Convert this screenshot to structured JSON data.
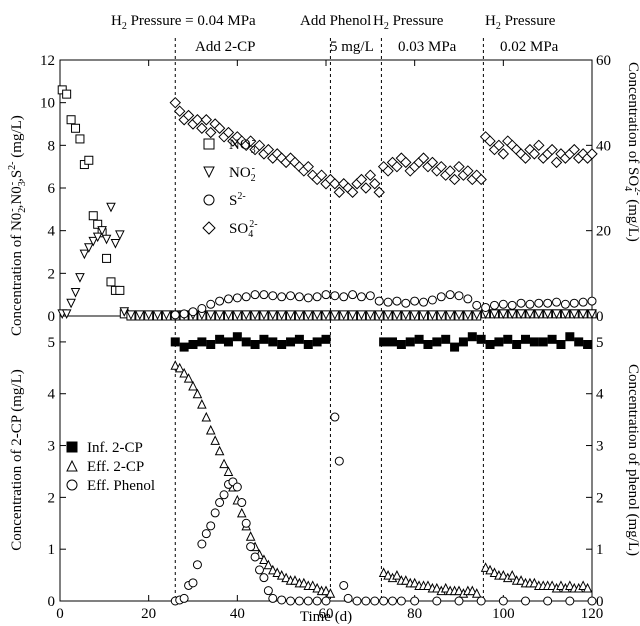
{
  "chart_data": [
    {
      "type": "scatter",
      "panel": "top",
      "ylabel_left": "Concentration of NO2-, NO3-, S2- (mg/L)",
      "ylabel_left_html": [
        "Concentration of N0",
        "2",
        "-",
        ",N0",
        "3",
        "-",
        ",S",
        "2-",
        " (mg/L)"
      ],
      "ylabel_right_parts": [
        "Concentration of SO",
        "4",
        "2-",
        " (mg/L)"
      ],
      "ylim_left": [
        0,
        12
      ],
      "yticks_left": [
        0,
        2,
        4,
        6,
        8,
        10,
        12
      ],
      "ylim_right": [
        0,
        60
      ],
      "yticks_right": [
        0,
        20,
        40,
        60
      ],
      "xlim": [
        0,
        120
      ],
      "legend": [
        {
          "label": "NO3-",
          "base": "NO",
          "sub": "3",
          "sup": "-",
          "marker": "square"
        },
        {
          "label": "NO2-",
          "base": "NO",
          "sub": "2",
          "sup": "-",
          "marker": "triangle-down"
        },
        {
          "label": "S2-",
          "base": "S",
          "sub": "",
          "sup": "2-",
          "marker": "circle"
        },
        {
          "label": "SO42-",
          "base": "SO",
          "sub": "4",
          "sup": "2-",
          "marker": "diamond"
        }
      ],
      "series": [
        {
          "name": "NO3-",
          "marker": "square",
          "axis": "left",
          "x": [
            0.5,
            1.5,
            2.5,
            3.5,
            4.5,
            5.5,
            6.5,
            7.5,
            8.5,
            9.5,
            10.5,
            11.5,
            12.5,
            13.5,
            14.5,
            16,
            18,
            20,
            22,
            24,
            26,
            28,
            30,
            32,
            34,
            36,
            38,
            40,
            42,
            44,
            46,
            48,
            50,
            52,
            54,
            56,
            58,
            60,
            62,
            64,
            66,
            68,
            70,
            72,
            74,
            76,
            78,
            80,
            82,
            84,
            86,
            88,
            90,
            92,
            94,
            96,
            98,
            100,
            102,
            104,
            106,
            108,
            110,
            112,
            114,
            116,
            118,
            120
          ],
          "y": [
            10.6,
            10.4,
            9.2,
            8.8,
            8.3,
            7.1,
            7.3,
            4.7,
            4.3,
            3.9,
            2.7,
            1.6,
            1.2,
            1.2,
            0.1,
            0,
            0,
            0,
            0,
            0,
            0,
            0,
            0,
            0,
            0,
            0,
            0,
            0,
            0,
            0,
            0,
            0,
            0,
            0,
            0,
            0,
            0,
            0,
            0,
            0,
            0,
            0,
            0,
            0,
            0,
            0,
            0,
            0,
            0,
            0,
            0,
            0,
            0,
            0,
            0,
            0.1,
            0.1,
            0.1,
            0.1,
            0.1,
            0.1,
            0.1,
            0.1,
            0.1,
            0.1,
            0.1,
            0.1,
            0.1
          ]
        },
        {
          "name": "NO2-",
          "marker": "triangle-down",
          "axis": "left",
          "x": [
            0.5,
            1.5,
            2.5,
            3.5,
            4.5,
            5.5,
            6.5,
            7.5,
            8.5,
            9.5,
            10.5,
            11.5,
            12.5,
            13.5,
            14.5,
            16,
            18,
            20,
            22,
            24,
            26,
            28,
            30,
            32,
            34,
            36,
            38,
            40,
            42,
            44,
            46,
            48,
            50,
            52,
            54,
            56,
            58,
            60,
            62,
            64,
            66,
            68,
            70,
            72,
            74,
            76,
            78,
            80,
            82,
            84,
            86,
            88,
            90,
            92,
            94,
            96,
            98,
            100,
            102,
            104,
            106,
            108,
            110,
            112,
            114,
            116,
            118,
            120
          ],
          "y": [
            0.1,
            0.1,
            0.6,
            1.1,
            1.8,
            2.9,
            3.2,
            3.5,
            3.7,
            4.0,
            3.6,
            5.1,
            3.4,
            3.8,
            0.2,
            0.05,
            0.05,
            0.05,
            0.05,
            0.05,
            0.05,
            0.05,
            0.05,
            0.05,
            0.05,
            0.05,
            0.05,
            0.05,
            0.05,
            0.05,
            0.05,
            0.05,
            0.05,
            0.05,
            0.05,
            0.05,
            0.05,
            0.05,
            0.05,
            0.05,
            0.05,
            0.05,
            0.05,
            0.05,
            0.05,
            0.05,
            0.05,
            0.05,
            0.05,
            0.05,
            0.05,
            0.05,
            0.05,
            0.05,
            0.05,
            0.1,
            0.1,
            0.1,
            0.1,
            0.1,
            0.1,
            0.1,
            0.1,
            0.1,
            0.1,
            0.1,
            0.1,
            0.1
          ]
        },
        {
          "name": "S2-",
          "marker": "circle",
          "axis": "left",
          "x": [
            26,
            28,
            30,
            32,
            34,
            36,
            38,
            40,
            42,
            44,
            46,
            48,
            50,
            52,
            54,
            56,
            58,
            60,
            62,
            64,
            66,
            68,
            70,
            72,
            74,
            76,
            78,
            80,
            82,
            84,
            86,
            88,
            90,
            92,
            94,
            96,
            98,
            100,
            102,
            104,
            106,
            108,
            110,
            112,
            114,
            116,
            118,
            120
          ],
          "y": [
            0.05,
            0.1,
            0.2,
            0.35,
            0.55,
            0.7,
            0.8,
            0.85,
            0.9,
            1.0,
            1.0,
            0.95,
            0.9,
            0.95,
            0.9,
            0.85,
            0.9,
            1.0,
            0.95,
            0.9,
            1.0,
            0.9,
            0.95,
            0.7,
            0.65,
            0.7,
            0.6,
            0.7,
            0.65,
            0.75,
            0.9,
            1.0,
            0.95,
            0.8,
            0.5,
            0.4,
            0.5,
            0.55,
            0.5,
            0.6,
            0.55,
            0.6,
            0.6,
            0.65,
            0.55,
            0.6,
            0.65,
            0.7
          ]
        },
        {
          "name": "SO42-",
          "marker": "diamond",
          "axis": "right",
          "x": [
            26,
            27,
            28,
            29,
            30,
            31,
            32,
            33,
            34,
            35,
            36,
            37,
            38,
            39,
            40,
            41,
            42,
            43,
            44,
            45,
            46,
            47,
            48,
            49,
            50,
            51,
            52,
            53,
            54,
            55,
            56,
            57,
            58,
            59,
            60,
            61,
            62,
            63,
            64,
            65,
            66,
            67,
            68,
            69,
            70,
            71,
            72,
            73,
            74,
            75,
            76,
            77,
            78,
            79,
            80,
            81,
            82,
            83,
            84,
            85,
            86,
            87,
            88,
            89,
            90,
            91,
            92,
            93,
            94,
            95,
            96,
            97,
            98,
            99,
            100,
            101,
            102,
            103,
            104,
            105,
            106,
            107,
            108,
            109,
            110,
            111,
            112,
            113,
            114,
            115,
            116,
            117,
            118,
            119,
            120
          ],
          "y": [
            50,
            48,
            46,
            47,
            45,
            46,
            44,
            46,
            43,
            45,
            44,
            42,
            43,
            41,
            42,
            41,
            40,
            41,
            39,
            40,
            38,
            39,
            37,
            38,
            37,
            36,
            37,
            36,
            35,
            34,
            35,
            33,
            32,
            33,
            31,
            32,
            31,
            29,
            31,
            30,
            29,
            31,
            32,
            30,
            33,
            31,
            29,
            35,
            34,
            36,
            35,
            37,
            36,
            34,
            35,
            36,
            37,
            35,
            36,
            34,
            35,
            33,
            34,
            32,
            35,
            33,
            34,
            32,
            33,
            32,
            42,
            41,
            39,
            40,
            38,
            41,
            40,
            39,
            38,
            37,
            39,
            38,
            40,
            37,
            38,
            39,
            36,
            38,
            37,
            38,
            39,
            37,
            38,
            37,
            38
          ]
        }
      ]
    },
    {
      "type": "scatter",
      "panel": "bottom",
      "ylabel_left": "Concentration of 2-CP (mg/L)",
      "ylabel_right": "Concentration of phenol (mg/L)",
      "xlabel": "Time (d)",
      "ylim_left": [
        0,
        5.5
      ],
      "yticks_left": [
        0,
        1,
        2,
        3,
        4,
        5
      ],
      "ylim_right": [
        0,
        5.5
      ],
      "yticks_right": [
        0,
        1,
        2,
        3,
        4,
        5
      ],
      "xlim": [
        0,
        120
      ],
      "xticks": [
        0,
        20,
        40,
        60,
        80,
        100,
        120
      ],
      "legend": [
        {
          "label": "Inf. 2-CP",
          "marker": "filled-square"
        },
        {
          "label": "Eff. 2-CP",
          "marker": "triangle-up"
        },
        {
          "label": "Eff. Phenol",
          "marker": "circle"
        }
      ],
      "series": [
        {
          "name": "Inf. 2-CP",
          "marker": "filled-square",
          "x": [
            26,
            28,
            30,
            32,
            34,
            36,
            38,
            40,
            42,
            44,
            46,
            48,
            50,
            52,
            54,
            56,
            58,
            60,
            73,
            75,
            77,
            79,
            81,
            83,
            85,
            87,
            89,
            91,
            93,
            95,
            97,
            99,
            101,
            103,
            105,
            107,
            109,
            111,
            113,
            115,
            117,
            119
          ],
          "y": [
            5.0,
            4.9,
            4.95,
            5.0,
            4.95,
            5.05,
            5.0,
            5.1,
            5.0,
            4.95,
            5.05,
            5.0,
            4.95,
            5.0,
            5.05,
            4.95,
            5.0,
            5.05,
            5.0,
            5.0,
            4.95,
            5.0,
            5.05,
            4.95,
            5.0,
            5.05,
            4.9,
            5.0,
            5.1,
            5.05,
            4.95,
            5.0,
            5.05,
            4.95,
            5.05,
            5.0,
            5.0,
            5.05,
            4.95,
            5.1,
            5.0,
            4.95
          ]
        },
        {
          "name": "Eff. 2-CP",
          "marker": "triangle-up",
          "x": [
            26,
            27,
            28,
            29,
            30,
            31,
            32,
            33,
            34,
            35,
            36,
            37,
            38,
            39,
            40,
            41,
            42,
            43,
            44,
            45,
            46,
            47,
            48,
            49,
            50,
            51,
            52,
            53,
            54,
            55,
            56,
            57,
            58,
            59,
            60,
            61,
            73,
            74,
            75,
            76,
            77,
            78,
            79,
            80,
            81,
            82,
            83,
            84,
            85,
            86,
            87,
            88,
            89,
            90,
            91,
            92,
            93,
            94,
            96,
            97,
            98,
            99,
            100,
            101,
            102,
            103,
            104,
            105,
            106,
            107,
            108,
            109,
            110,
            111,
            112,
            113,
            114,
            115,
            116,
            117,
            118,
            119
          ],
          "y": [
            4.55,
            4.5,
            4.4,
            4.3,
            4.15,
            4.0,
            3.8,
            3.55,
            3.3,
            3.1,
            2.9,
            2.65,
            2.5,
            2.2,
            1.95,
            1.7,
            1.45,
            1.25,
            1.05,
            0.9,
            0.8,
            0.7,
            0.6,
            0.55,
            0.5,
            0.45,
            0.4,
            0.4,
            0.35,
            0.35,
            0.3,
            0.3,
            0.25,
            0.2,
            0.2,
            0.15,
            0.55,
            0.5,
            0.45,
            0.5,
            0.4,
            0.4,
            0.35,
            0.35,
            0.3,
            0.3,
            0.3,
            0.25,
            0.25,
            0.2,
            0.25,
            0.2,
            0.2,
            0.2,
            0.15,
            0.2,
            0.2,
            0.15,
            0.65,
            0.6,
            0.55,
            0.5,
            0.5,
            0.45,
            0.5,
            0.4,
            0.4,
            0.35,
            0.35,
            0.35,
            0.3,
            0.3,
            0.3,
            0.3,
            0.25,
            0.3,
            0.25,
            0.3,
            0.25,
            0.25,
            0.3,
            0.25
          ]
        },
        {
          "name": "Eff. Phenol",
          "marker": "circle",
          "x": [
            26,
            27,
            28,
            29,
            30,
            31,
            32,
            33,
            34,
            35,
            36,
            37,
            38,
            39,
            40,
            41,
            42,
            43,
            44,
            45,
            46,
            47,
            48,
            50,
            52,
            54,
            56,
            58,
            60,
            62,
            63,
            64,
            65,
            67,
            69,
            71,
            73,
            75,
            77,
            80,
            85,
            90,
            95,
            100,
            105,
            110,
            115,
            120
          ],
          "y": [
            0,
            0.02,
            0.05,
            0.3,
            0.35,
            0.7,
            1.1,
            1.3,
            1.45,
            1.7,
            1.9,
            2.05,
            2.25,
            2.3,
            2.2,
            1.9,
            1.5,
            1.05,
            0.85,
            0.6,
            0.45,
            0.2,
            0.05,
            0.02,
            0,
            0,
            0,
            0,
            0,
            3.55,
            2.7,
            0.3,
            0.05,
            0,
            0,
            0,
            0,
            0,
            0,
            0,
            0,
            0,
            0,
            0,
            0,
            0,
            0,
            0
          ]
        }
      ]
    }
  ],
  "annotations": {
    "phase1": {
      "text": "Add 2-CP",
      "x": 26
    },
    "phase2": {
      "text": "5 mg/L",
      "x": 61
    },
    "phase3": {
      "text": "0.03 MPa",
      "x": 72.5
    },
    "phase4": {
      "text": "0.02 MPa",
      "x": 95.5
    },
    "header1_base": "H",
    "header1_sub": "2",
    "header1_rest": " Pressure = 0.04 MPa",
    "header2": "Add Phenol",
    "header3_base": "H",
    "header3_sub": "2",
    "header3_rest": " Pressure",
    "header4_base": "H",
    "header4_sub": "2",
    "header4_rest": " Pressure"
  },
  "divider_lines_x": [
    26,
    61,
    72.5,
    95.5
  ]
}
